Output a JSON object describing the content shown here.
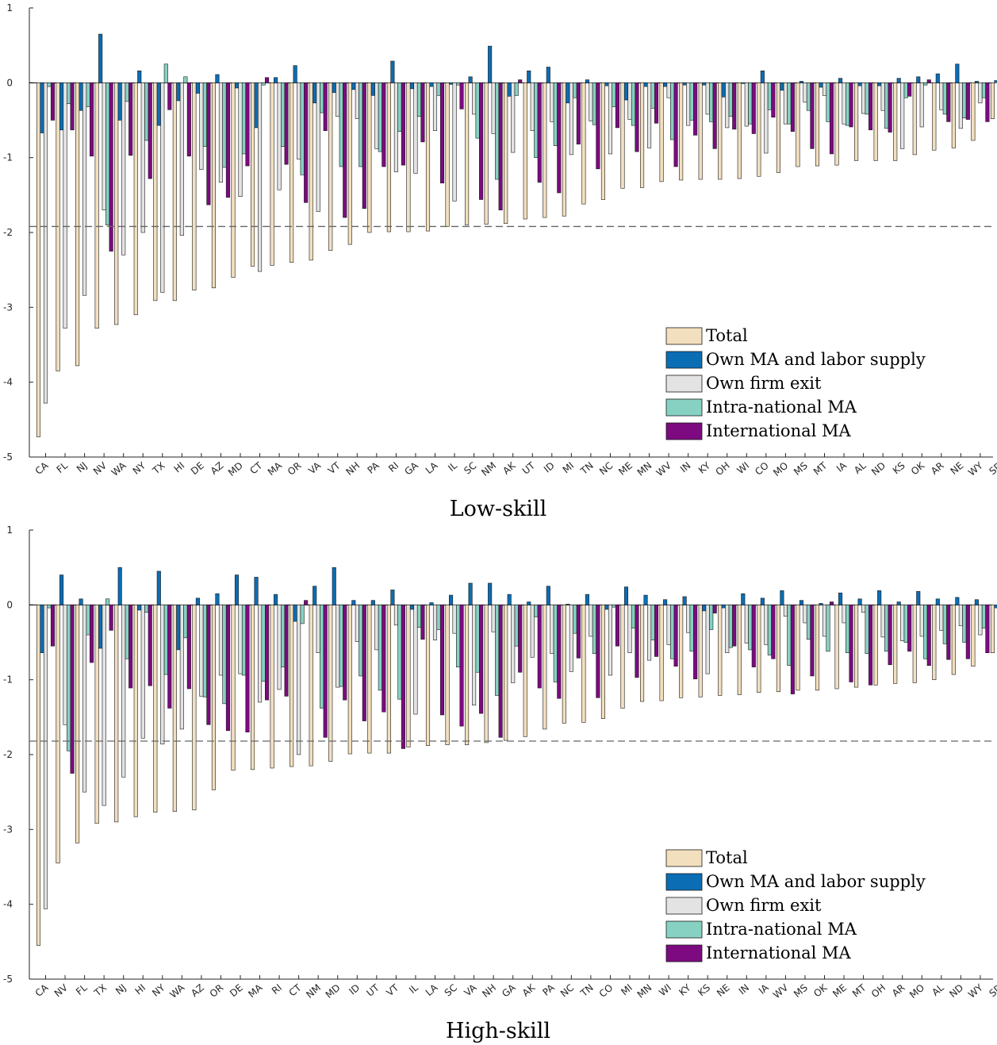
{
  "colors": {
    "total": "#f2dfbe",
    "own_ma": "#0b6db4",
    "own_exit": "#e3e3e3",
    "intra": "#86d1c2",
    "intl": "#7d0a80",
    "axis": "#262626",
    "reference": "#666666"
  },
  "chart_data": [
    {
      "type": "bar",
      "caption": "Low-skill",
      "ylim": [
        -5,
        1
      ],
      "yticks": [
        "1",
        "0",
        "-1",
        "-2",
        "-3",
        "-4",
        "-5"
      ],
      "reference_line": -1.92,
      "legend": {
        "placement": "bottom-right",
        "entries": [
          "Total",
          "Own MA and labor supply",
          "Own firm exit",
          "Intra-national MA",
          "International MA"
        ]
      },
      "categories": [
        "CA",
        "FL",
        "NJ",
        "NV",
        "WA",
        "NY",
        "TX",
        "HI",
        "DE",
        "AZ",
        "MD",
        "CT",
        "MA",
        "OR",
        "VA",
        "VT",
        "NH",
        "PA",
        "RI",
        "GA",
        "LA",
        "IL",
        "SC",
        "NM",
        "AK",
        "UT",
        "ID",
        "MI",
        "TN",
        "NC",
        "ME",
        "MN",
        "WV",
        "IN",
        "KY",
        "OH",
        "WI",
        "CO",
        "MO",
        "MS",
        "MT",
        "IA",
        "AL",
        "ND",
        "KS",
        "OK",
        "AR",
        "NE",
        "WY",
        "SD"
      ],
      "series": [
        {
          "key": "total",
          "name": "Total",
          "values": [
            -4.73,
            -3.85,
            -3.78,
            -3.28,
            -3.23,
            -3.1,
            -2.91,
            -2.91,
            -2.77,
            -2.74,
            -2.6,
            -2.45,
            -2.44,
            -2.4,
            -2.37,
            -2.24,
            -2.16,
            -2.0,
            -1.99,
            -1.99,
            -1.98,
            -1.92,
            -1.9,
            -1.89,
            -1.88,
            -1.82,
            -1.8,
            -1.78,
            -1.62,
            -1.56,
            -1.41,
            -1.4,
            -1.32,
            -1.3,
            -1.29,
            -1.29,
            -1.28,
            -1.25,
            -1.2,
            -1.12,
            -1.11,
            -1.1,
            -1.04,
            -1.04,
            -1.04,
            -0.96,
            -0.9,
            -0.87,
            -0.77,
            -0.48
          ]
        },
        {
          "key": "own_ma",
          "name": "Own MA and labor supply",
          "values": [
            -0.67,
            -0.63,
            -0.37,
            0.65,
            -0.5,
            0.16,
            -0.57,
            -0.24,
            -0.14,
            0.11,
            -0.07,
            -0.6,
            0.07,
            0.23,
            -0.27,
            -0.13,
            -0.09,
            -0.17,
            0.29,
            -0.08,
            -0.05,
            -0.02,
            0.08,
            0.49,
            -0.18,
            0.16,
            0.21,
            -0.27,
            0.04,
            -0.04,
            -0.23,
            -0.05,
            -0.05,
            -0.03,
            -0.03,
            -0.19,
            -0.01,
            0.16,
            -0.1,
            0.02,
            -0.06,
            0.06,
            -0.04,
            -0.04,
            0.06,
            0.08,
            0.12,
            0.25,
            0.02,
            0.03
          ]
        },
        {
          "key": "own_exit",
          "name": "Own firm exit",
          "values": [
            -4.28,
            -3.28,
            -2.84,
            -1.7,
            -2.3,
            -2.0,
            -2.8,
            -2.04,
            -1.16,
            -1.33,
            -1.52,
            -2.52,
            -1.43,
            -1.02,
            -1.72,
            -0.45,
            -0.48,
            -0.88,
            -1.19,
            -1.21,
            -0.64,
            -1.58,
            -0.42,
            -0.68,
            -0.93,
            -0.64,
            -0.52,
            -0.96,
            -0.51,
            -0.95,
            -0.49,
            -0.87,
            -0.2,
            -0.57,
            -0.42,
            -0.6,
            -0.58,
            -0.94,
            -0.55,
            -0.26,
            -0.17,
            -0.55,
            -0.41,
            -0.37,
            -0.88,
            -0.59,
            -0.36,
            -0.61,
            -0.27,
            -0.39
          ]
        },
        {
          "key": "intra",
          "name": "Intra-national MA",
          "values": [
            -0.05,
            -0.28,
            -0.32,
            -1.9,
            -0.25,
            -0.77,
            0.25,
            0.08,
            -0.85,
            -1.13,
            -0.95,
            -0.03,
            -0.85,
            -1.23,
            -0.4,
            -1.12,
            -1.12,
            -0.92,
            -0.65,
            -0.45,
            -0.17,
            -0.03,
            -0.74,
            -1.29,
            -0.17,
            -1.0,
            -0.84,
            -0.2,
            -0.56,
            -0.32,
            -0.57,
            -0.34,
            -0.76,
            -0.5,
            -0.52,
            -0.45,
            -0.55,
            -0.36,
            -0.55,
            -0.37,
            -0.52,
            -0.57,
            -0.42,
            -0.61,
            -0.2,
            -0.03,
            -0.42,
            -0.47,
            -0.2,
            -0.13
          ]
        },
        {
          "key": "intl",
          "name": "International MA",
          "values": [
            -0.5,
            -0.63,
            -0.98,
            -2.25,
            -0.97,
            -1.28,
            -0.36,
            -0.98,
            -1.63,
            -1.53,
            -1.11,
            0.07,
            -1.09,
            -1.6,
            -0.64,
            -1.8,
            -1.68,
            -1.12,
            -1.1,
            -0.79,
            -1.34,
            -0.35,
            -1.56,
            -1.7,
            0.04,
            -1.33,
            -1.47,
            -0.82,
            -1.15,
            -0.6,
            -0.92,
            -0.54,
            -1.12,
            -0.7,
            -0.88,
            -0.62,
            -0.68,
            -0.46,
            -0.65,
            -0.88,
            -0.95,
            -0.59,
            -0.63,
            -0.66,
            -0.18,
            0.04,
            -0.52,
            -0.49,
            -0.52,
            -0.15
          ]
        }
      ]
    },
    {
      "type": "bar",
      "caption": "High-skill",
      "ylim": [
        -5,
        1
      ],
      "yticks": [
        "1",
        "0",
        "-1",
        "-2",
        "-3",
        "-4",
        "-5"
      ],
      "reference_line": -1.82,
      "legend": {
        "placement": "bottom-right",
        "entries": [
          "Total",
          "Own MA and labor supply",
          "Own firm exit",
          "Intra-national MA",
          "International MA"
        ]
      },
      "categories": [
        "CA",
        "NV",
        "FL",
        "TX",
        "NJ",
        "HI",
        "NY",
        "WA",
        "AZ",
        "OR",
        "DE",
        "MA",
        "RI",
        "CT",
        "NM",
        "MD",
        "ID",
        "UT",
        "VT",
        "IL",
        "LA",
        "SC",
        "VA",
        "NH",
        "GA",
        "AK",
        "PA",
        "NC",
        "TN",
        "CO",
        "MI",
        "MN",
        "WI",
        "KY",
        "KS",
        "NE",
        "IN",
        "IA",
        "WV",
        "MS",
        "OK",
        "ME",
        "MT",
        "OH",
        "AR",
        "MO",
        "AL",
        "ND",
        "WY",
        "SD"
      ],
      "series": [
        {
          "key": "total",
          "name": "Total",
          "values": [
            -4.55,
            -3.45,
            -3.18,
            -2.92,
            -2.9,
            -2.83,
            -2.77,
            -2.76,
            -2.74,
            -2.47,
            -2.21,
            -2.2,
            -2.18,
            -2.16,
            -2.15,
            -2.09,
            -1.99,
            -1.98,
            -1.98,
            -1.9,
            -1.88,
            -1.87,
            -1.87,
            -1.84,
            -1.81,
            -1.76,
            -1.66,
            -1.58,
            -1.57,
            -1.52,
            -1.38,
            -1.29,
            -1.28,
            -1.24,
            -1.23,
            -1.21,
            -1.2,
            -1.17,
            -1.16,
            -1.14,
            -1.14,
            -1.12,
            -1.1,
            -1.07,
            -1.05,
            -1.04,
            -1.0,
            -0.93,
            -0.82,
            -0.64
          ]
        },
        {
          "key": "own_ma",
          "name": "Own MA and labor supply",
          "values": [
            -0.64,
            0.4,
            0.08,
            -0.58,
            0.5,
            -0.07,
            0.45,
            -0.6,
            0.09,
            0.15,
            0.4,
            0.37,
            0.14,
            -0.22,
            0.25,
            0.5,
            0.06,
            0.06,
            0.2,
            -0.06,
            0.03,
            0.13,
            0.29,
            0.29,
            0.14,
            0.04,
            0.25,
            0.01,
            0.14,
            -0.06,
            0.24,
            0.13,
            0.07,
            0.11,
            -0.08,
            -0.04,
            0.15,
            0.09,
            0.19,
            0.06,
            0.02,
            0.16,
            0.08,
            0.19,
            0.04,
            0.18,
            0.08,
            0.1,
            0.07,
            -0.04
          ]
        },
        {
          "key": "own_exit",
          "name": "Own firm exit",
          "values": [
            -4.06,
            -1.6,
            -2.5,
            -2.68,
            -2.3,
            -1.78,
            -1.86,
            -1.66,
            -1.22,
            -0.94,
            -0.92,
            -1.3,
            -1.13,
            -2.0,
            -0.64,
            -1.1,
            -0.49,
            -0.6,
            -0.27,
            -1.46,
            -0.47,
            -0.38,
            -1.34,
            -0.36,
            -1.04,
            -0.7,
            -0.65,
            -0.89,
            -0.42,
            -0.94,
            -0.64,
            -0.74,
            -0.53,
            -0.37,
            -0.92,
            -0.64,
            -0.51,
            -0.53,
            -0.15,
            -0.24,
            -0.42,
            -0.24,
            -0.1,
            -0.43,
            -0.48,
            -0.42,
            -0.34,
            -0.28,
            -0.4,
            -0.34
          ]
        },
        {
          "key": "intra",
          "name": "Intra-national MA",
          "values": [
            -0.04,
            -1.95,
            -0.4,
            0.08,
            -0.72,
            -0.1,
            -0.93,
            -0.44,
            -1.23,
            -1.32,
            -0.94,
            -1.02,
            -0.83,
            -0.25,
            -1.38,
            -1.09,
            -0.95,
            -1.14,
            -1.26,
            -0.3,
            -0.33,
            -0.83,
            -0.9,
            -1.21,
            -0.55,
            -0.16,
            -1.03,
            -0.38,
            -0.65,
            -0.03,
            -0.31,
            -0.47,
            -0.72,
            -0.62,
            -0.33,
            -0.57,
            -0.6,
            -0.67,
            -0.81,
            -0.46,
            -0.62,
            -0.64,
            -0.65,
            -0.62,
            -0.5,
            -0.72,
            -0.52,
            -0.5,
            -0.31,
            -0.27
          ]
        },
        {
          "key": "intl",
          "name": "International MA",
          "values": [
            -0.55,
            -2.25,
            -0.77,
            -0.34,
            -1.11,
            -1.08,
            -1.38,
            -1.12,
            -1.6,
            -1.68,
            -1.7,
            -1.27,
            -1.22,
            0.06,
            -1.77,
            -1.27,
            -1.55,
            -1.43,
            -1.92,
            -0.46,
            -1.47,
            -1.62,
            -1.45,
            -1.77,
            -0.9,
            -1.11,
            -1.25,
            -0.71,
            -1.24,
            -0.55,
            -0.97,
            -0.69,
            -0.82,
            -0.99,
            -0.11,
            -0.55,
            -0.83,
            -0.72,
            -1.19,
            -0.95,
            0.04,
            -1.03,
            -1.07,
            -0.8,
            -0.62,
            -0.81,
            -0.73,
            -0.72,
            -0.64,
            0.01
          ]
        }
      ]
    }
  ]
}
